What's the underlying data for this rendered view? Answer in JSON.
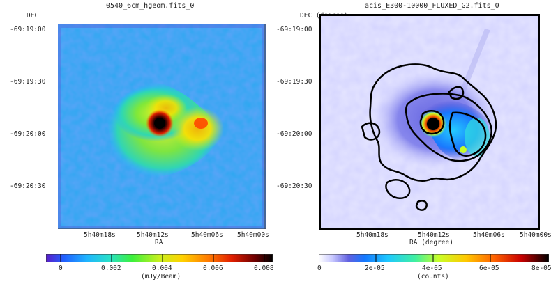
{
  "left_panel": {
    "title": "0540_6cm_hgeom.fits_0",
    "y_axis_label": "DEC",
    "x_axis_label": "RA",
    "dec_ticks": [
      "-69:19:00",
      "-69:19:30",
      "-69:20:00",
      "-69:20:30"
    ],
    "ra_ticks": [
      "5h40m18s",
      "5h40m12s",
      "5h40m06s",
      "5h40m00s"
    ],
    "colorbar": {
      "ticks": [
        "0",
        "0.002",
        "0.004",
        "0.006",
        "0.008"
      ],
      "label": "(mJy/Beam)"
    }
  },
  "right_panel": {
    "title": "acis_E300-10000_FLUXED_G2.fits_0",
    "y_axis_label": "DEC (degree)",
    "x_axis_label": "RA (degree)",
    "dec_ticks": [
      "-69:19:00",
      "-69:19:30",
      "-69:20:00",
      "-69:20:30"
    ],
    "ra_ticks": [
      "5h40m18s",
      "5h40m12s",
      "5h40m06s",
      "5h40m00s"
    ],
    "colorbar": {
      "ticks": [
        "0",
        "2e-05",
        "4e-05",
        "6e-05",
        "8e-05"
      ],
      "label": "(counts)"
    }
  },
  "colors": {
    "rainbow": [
      "#5a1ec8",
      "#2060ff",
      "#1fb4ff",
      "#28e0c8",
      "#3cf03c",
      "#c8f01e",
      "#ffd200",
      "#ff7800",
      "#e01e00",
      "#700000",
      "#000000"
    ],
    "blue_white": [
      "#ffffff",
      "#c8c8ff",
      "#8080f0",
      "#3c3cd0",
      "#1478ff",
      "#1ec8ff",
      "#40f0a0",
      "#c8ff28",
      "#ffc800",
      "#ff6400",
      "#c80000",
      "#000000"
    ],
    "contour": "#000000"
  }
}
